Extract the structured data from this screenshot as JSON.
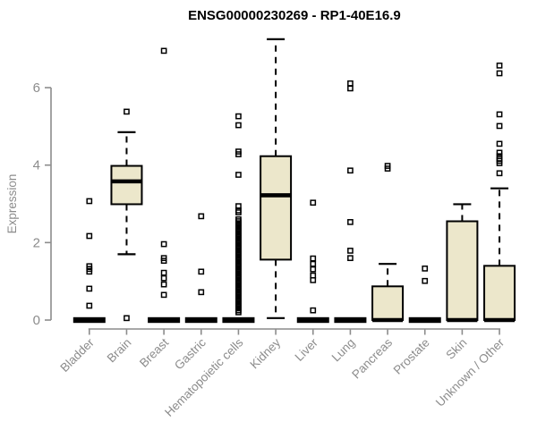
{
  "colors": {
    "box_fill": "#ECE7CB",
    "box_border": "#000000",
    "median": "#000000",
    "whisker": "#000000",
    "outlier": "#000000",
    "axis": "#8C8C8C",
    "title": "#000000",
    "background": "#FFFFFF"
  },
  "chart_data": {
    "type": "boxplot",
    "title": "ENSG00000230269 - RP1-40E16.9",
    "xlabel": "",
    "ylabel": "Expression",
    "ylim": [
      0,
      7.4
    ],
    "yticks": [
      0,
      2,
      4,
      6
    ],
    "grid": false,
    "legend": "none",
    "categories": [
      "Bladder",
      "Brain",
      "Breast",
      "Gastric",
      "Hematopoietic cells",
      "Kidney",
      "Liver",
      "Lung",
      "Pancreas",
      "Prostate",
      "Skin",
      "Unknown / Other"
    ],
    "series": [
      {
        "category": "Bladder",
        "whisker_low": 0,
        "q1": 0,
        "median": 0,
        "q3": 0,
        "whisker_high": 0,
        "outliers": [
          0.37,
          0.81,
          1.25,
          1.32,
          1.39,
          2.17,
          3.07
        ]
      },
      {
        "category": "Brain",
        "whisker_low": 1.7,
        "q1": 2.99,
        "median": 3.58,
        "q3": 3.98,
        "whisker_high": 4.85,
        "outliers": [
          0.05,
          5.38
        ]
      },
      {
        "category": "Breast",
        "whisker_low": 0,
        "q1": 0,
        "median": 0,
        "q3": 0,
        "whisker_high": 0,
        "outliers": [
          0.65,
          0.92,
          1.08,
          1.22,
          1.53,
          1.6,
          1.96,
          6.95
        ]
      },
      {
        "category": "Gastric",
        "whisker_low": 0,
        "q1": 0,
        "median": 0,
        "q3": 0,
        "whisker_high": 0,
        "outliers": [
          0.72,
          1.25,
          2.68
        ]
      },
      {
        "category": "Hematopoietic cells",
        "whisker_low": 0,
        "q1": 0,
        "median": 0,
        "q3": 0,
        "whisker_high": 0,
        "outliers": [
          0.2,
          0.25,
          0.3,
          0.35,
          0.4,
          0.45,
          0.5,
          0.55,
          0.6,
          0.65,
          0.7,
          0.75,
          0.8,
          0.85,
          0.9,
          0.95,
          1.0,
          1.05,
          1.1,
          1.15,
          1.2,
          1.25,
          1.3,
          1.35,
          1.4,
          1.45,
          1.5,
          1.55,
          1.6,
          1.65,
          1.7,
          1.75,
          1.8,
          1.85,
          1.9,
          1.95,
          2.0,
          2.05,
          2.1,
          2.15,
          2.2,
          2.25,
          2.3,
          2.35,
          2.4,
          2.45,
          2.5,
          2.55,
          2.6,
          2.78,
          2.83,
          2.94,
          3.75,
          4.28,
          4.35,
          5.03,
          5.26
        ]
      },
      {
        "category": "Kidney",
        "whisker_low": 0.05,
        "q1": 1.56,
        "median": 3.22,
        "q3": 4.23,
        "whisker_high": 7.25,
        "outliers": []
      },
      {
        "category": "Liver",
        "whisker_low": 0,
        "q1": 0,
        "median": 0,
        "q3": 0,
        "whisker_high": 0,
        "outliers": [
          0.25,
          1.03,
          1.15,
          1.31,
          1.45,
          1.59,
          3.03
        ]
      },
      {
        "category": "Lung",
        "whisker_low": 0,
        "q1": 0,
        "median": 0,
        "q3": 0,
        "whisker_high": 0,
        "outliers": [
          1.6,
          1.79,
          2.53,
          3.86,
          5.98,
          6.11
        ]
      },
      {
        "category": "Pancreas",
        "whisker_low": 0,
        "q1": 0,
        "median": 0,
        "q3": 0.87,
        "whisker_high": 1.45,
        "outliers": [
          3.91,
          3.98
        ]
      },
      {
        "category": "Prostate",
        "whisker_low": 0,
        "q1": 0,
        "median": 0,
        "q3": 0,
        "whisker_high": 0,
        "outliers": [
          1.01,
          1.33
        ]
      },
      {
        "category": "Skin",
        "whisker_low": 0,
        "q1": 0,
        "median": 0,
        "q3": 2.55,
        "whisker_high": 2.99,
        "outliers": []
      },
      {
        "category": "Unknown / Other",
        "whisker_low": 0,
        "q1": 0,
        "median": 0,
        "q3": 1.4,
        "whisker_high": 3.4,
        "outliers": [
          3.79,
          4.05,
          4.11,
          4.16,
          4.23,
          4.32,
          4.55,
          5.01,
          5.31,
          6.37,
          6.57
        ]
      }
    ]
  }
}
